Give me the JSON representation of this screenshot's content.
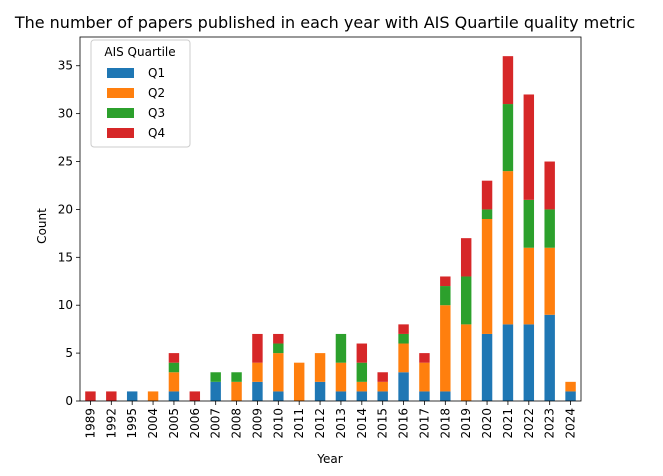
{
  "chart_data": {
    "type": "bar",
    "stacked": true,
    "title": "The number of papers published in each year with AIS Quartile quality metric",
    "xlabel": "Year",
    "ylabel": "Count",
    "ylim": [
      0,
      38
    ],
    "yticks": [
      0,
      5,
      10,
      15,
      20,
      25,
      30,
      35
    ],
    "grid": false,
    "legend": {
      "title": "AIS Quartile",
      "placement": "top-left"
    },
    "categories": [
      "1989",
      "1992",
      "1995",
      "2004",
      "2005",
      "2006",
      "2007",
      "2008",
      "2009",
      "2010",
      "2011",
      "2012",
      "2013",
      "2014",
      "2015",
      "2016",
      "2017",
      "2018",
      "2019",
      "2020",
      "2021",
      "2022",
      "2023",
      "2024"
    ],
    "series": [
      {
        "name": "Q1",
        "color": "#1f77b4",
        "values": [
          0,
          0,
          1,
          0,
          1,
          0,
          2,
          0,
          2,
          1,
          0,
          2,
          1,
          1,
          1,
          3,
          1,
          1,
          0,
          7,
          8,
          8,
          9,
          1
        ]
      },
      {
        "name": "Q2",
        "color": "#ff7f0e",
        "values": [
          0,
          0,
          0,
          1,
          2,
          0,
          0,
          2,
          2,
          4,
          4,
          3,
          3,
          1,
          1,
          3,
          3,
          9,
          8,
          12,
          16,
          8,
          7,
          1
        ]
      },
      {
        "name": "Q3",
        "color": "#2ca02c",
        "values": [
          0,
          0,
          0,
          0,
          1,
          0,
          1,
          1,
          0,
          1,
          0,
          0,
          3,
          2,
          0,
          1,
          0,
          2,
          5,
          1,
          7,
          5,
          4,
          0
        ]
      },
      {
        "name": "Q4",
        "color": "#d62728",
        "values": [
          1,
          1,
          0,
          0,
          1,
          1,
          0,
          0,
          3,
          1,
          0,
          0,
          0,
          2,
          1,
          1,
          1,
          1,
          4,
          3,
          5,
          11,
          5,
          0
        ]
      }
    ]
  }
}
